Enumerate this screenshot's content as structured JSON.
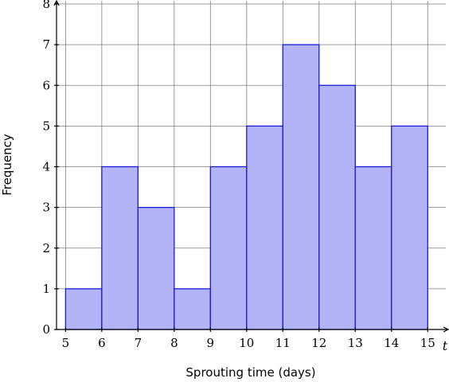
{
  "chart_data": {
    "type": "bar",
    "bin_edges": [
      5,
      6,
      7,
      8,
      9,
      10,
      11,
      12,
      13,
      14,
      15
    ],
    "values": [
      1,
      4,
      3,
      1,
      4,
      5,
      7,
      6,
      4,
      5
    ],
    "xlabel": "Sprouting time (days)",
    "ylabel": "Frequency",
    "x_axis_variable": "t",
    "xlim": [
      4.75,
      15.5
    ],
    "ylim": [
      0,
      8
    ],
    "x_ticks": [
      "5",
      "6",
      "7",
      "8",
      "9",
      "10",
      "11",
      "12",
      "13",
      "14",
      "15"
    ],
    "y_ticks": [
      "0",
      "1",
      "2",
      "3",
      "4",
      "5",
      "6",
      "7",
      "8"
    ],
    "grid": true,
    "colors": {
      "bar_fill": "#b3b3f7",
      "bar_stroke": "#1a1ad9",
      "grid": "#7f7f7f",
      "axis": "#000000"
    }
  }
}
